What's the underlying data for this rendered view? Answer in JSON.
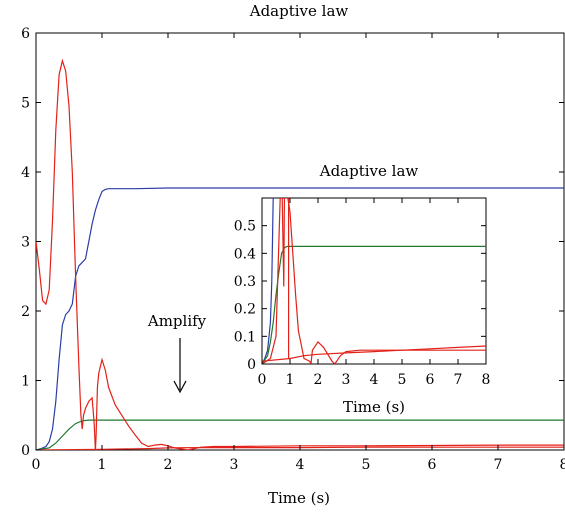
{
  "chart_data": [
    {
      "type": "line",
      "title": "Adaptive law",
      "xlabel": "Time (s)",
      "ylabel": "",
      "xlim": [
        0,
        8
      ],
      "ylim": [
        0,
        6
      ],
      "xticks": [
        0,
        1,
        2,
        3,
        4,
        5,
        6,
        7,
        8
      ],
      "yticks": [
        0,
        1,
        2,
        3,
        4,
        5,
        6
      ],
      "grid": false,
      "annotations": [
        "Adaptive law",
        "Amplify"
      ],
      "series": [
        {
          "color": "#2b3ea8",
          "x": [
            0,
            0.08,
            0.15,
            0.2,
            0.25,
            0.3,
            0.35,
            0.4,
            0.45,
            0.5,
            0.55,
            0.6,
            0.65,
            0.7,
            0.75,
            0.8,
            0.85,
            0.9,
            0.95,
            1.0,
            1.05,
            1.1,
            1.5,
            2.0,
            8.0
          ],
          "y": [
            0,
            0.02,
            0.05,
            0.12,
            0.3,
            0.7,
            1.3,
            1.8,
            1.95,
            2.0,
            2.1,
            2.5,
            2.65,
            2.7,
            2.75,
            3.0,
            3.25,
            3.45,
            3.6,
            3.72,
            3.75,
            3.76,
            3.76,
            3.77,
            3.77
          ]
        },
        {
          "color": "#1e7a2e",
          "x": [
            0,
            0.2,
            0.3,
            0.4,
            0.5,
            0.6,
            0.7,
            0.8,
            0.9,
            8.0
          ],
          "y": [
            0,
            0.03,
            0.1,
            0.2,
            0.3,
            0.38,
            0.42,
            0.43,
            0.43,
            0.43
          ]
        },
        {
          "color": "#e32119",
          "x": [
            0,
            0.05,
            0.1,
            0.15,
            0.2,
            0.25,
            0.3,
            0.35,
            0.4,
            0.45,
            0.5,
            0.55,
            0.6,
            0.65,
            0.68,
            0.7,
            0.72,
            0.75,
            0.8,
            0.85,
            0.88,
            0.9,
            0.91,
            0.93,
            0.95,
            1.0,
            1.05,
            1.1,
            1.2,
            1.3,
            1.4,
            1.5,
            1.6,
            1.7,
            1.8,
            1.9,
            2.0,
            2.1,
            2.3,
            2.5,
            2.7,
            3.0,
            4.0,
            5.0,
            6.0,
            7.0,
            8.0
          ],
          "y": [
            3.0,
            2.6,
            2.15,
            2.1,
            2.3,
            3.3,
            4.6,
            5.4,
            5.6,
            5.45,
            4.95,
            4.0,
            2.5,
            1.2,
            0.5,
            0.3,
            0.5,
            0.6,
            0.7,
            0.75,
            0.4,
            0.0,
            0.2,
            0.9,
            1.1,
            1.3,
            1.15,
            0.9,
            0.65,
            0.5,
            0.35,
            0.22,
            0.1,
            0.05,
            0.07,
            0.08,
            0.06,
            0.03,
            0.0,
            0.04,
            0.05,
            0.05,
            0.06,
            0.06,
            0.065,
            0.07,
            0.07
          ]
        },
        {
          "color": "#e32119",
          "x": [
            0,
            1.0,
            1.7,
            2.0,
            2.5,
            3.0,
            4.0,
            5.0,
            6.0,
            7.0,
            8.0
          ],
          "y": [
            0,
            0.01,
            0.02,
            0.03,
            0.035,
            0.035,
            0.035,
            0.04,
            0.04,
            0.04,
            0.04
          ]
        }
      ]
    },
    {
      "type": "line",
      "title": "",
      "xlabel": "Time (s)",
      "ylabel": "",
      "xlim": [
        0,
        8
      ],
      "ylim": [
        0,
        0.6
      ],
      "xticks": [
        0,
        1,
        2,
        3,
        4,
        5,
        6,
        7,
        8
      ],
      "yticks": [
        0,
        0.1,
        0.2,
        0.3,
        0.4,
        0.5
      ],
      "ytick_labels": [
        "0",
        "0.1",
        "0.2",
        "0.3",
        "0.4",
        "0.5"
      ],
      "grid": false,
      "series": [
        {
          "color": "#2b3ea8",
          "x": [
            0,
            0.1,
            0.2,
            0.3,
            0.35,
            0.4,
            0.5
          ],
          "y": [
            0,
            0.02,
            0.05,
            0.15,
            0.3,
            0.6,
            0.6
          ]
        },
        {
          "color": "#1e7a2e",
          "x": [
            0,
            0.2,
            0.3,
            0.4,
            0.5,
            0.6,
            0.7,
            0.8,
            0.9,
            8.0
          ],
          "y": [
            0,
            0.03,
            0.08,
            0.15,
            0.25,
            0.33,
            0.4,
            0.42,
            0.425,
            0.425
          ]
        },
        {
          "color": "#e32119",
          "x": [
            0,
            0.3,
            0.5,
            0.65,
            0.72,
            0.78,
            0.8,
            0.85,
            0.9,
            0.92,
            1.0,
            1.1,
            1.2,
            1.3,
            1.5,
            1.7,
            1.75,
            1.8,
            2.0,
            2.2,
            2.5,
            2.6,
            2.8,
            3.0,
            3.5,
            4.0,
            5.0,
            6.0,
            7.0,
            8.0
          ],
          "y": [
            0.0,
            0.02,
            0.1,
            0.6,
            0.6,
            0.28,
            0.6,
            0.6,
            0.6,
            0.6,
            0.55,
            0.4,
            0.25,
            0.12,
            0.02,
            0.01,
            0.0,
            0.05,
            0.08,
            0.06,
            0.01,
            0.0,
            0.03,
            0.045,
            0.05,
            0.05,
            0.05,
            0.05,
            0.05,
            0.05
          ]
        },
        {
          "color": "#e32119",
          "x": [
            0,
            1.0,
            1.5,
            2.0,
            3.0,
            4.0,
            5.0,
            6.0,
            7.0,
            8.0
          ],
          "y": [
            0.01,
            0.02,
            0.03,
            0.035,
            0.04,
            0.045,
            0.05,
            0.055,
            0.06,
            0.065
          ]
        },
        {
          "color": "#e32119",
          "x": [
            0.95,
            0.95
          ],
          "y": [
            0.6,
            0.02
          ]
        }
      ]
    }
  ]
}
